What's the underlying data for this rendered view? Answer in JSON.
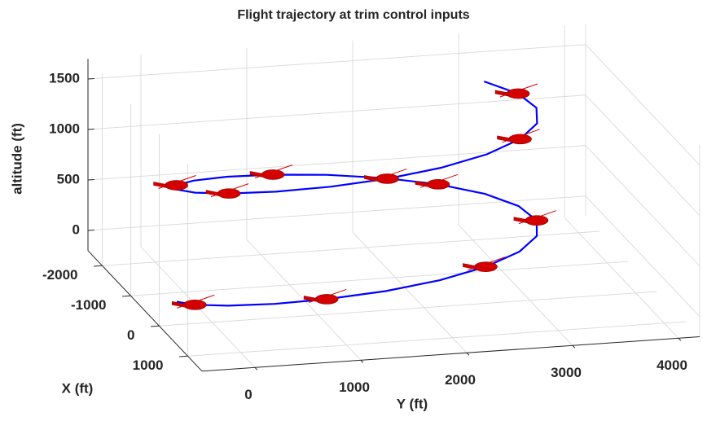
{
  "chart_data": {
    "type": "line3d",
    "title": "Flight trajectory at trim control inputs",
    "xlabel": "X (ft)",
    "ylabel": "Y (ft)",
    "zlabel": "altitude (ft)",
    "x": [
      -1098,
      -821,
      -512,
      -202,
      78,
      302,
      448,
      500,
      452,
      315,
      94,
      -181,
      -490,
      -801,
      -1081,
      -1306,
      -1449,
      -1500,
      -1451,
      -1314,
      -1092,
      -816,
      -502,
      -194,
      84,
      308,
      450,
      500,
      449,
      310,
      89,
      -186,
      -499
    ],
    "y": [
      2863,
      3110,
      3200,
      3123,
      2887,
      2515,
      2041,
      1519,
      995,
      516,
      133,
      -112,
      -200,
      -122,
      116,
      494,
      964,
      1486,
      2020,
      2488,
      2870,
      3113,
      3200,
      3118,
      2880,
      2501,
      2030,
      1503,
      961,
      504,
      126,
      -113,
      -200
    ],
    "z": [
      1650,
      1594,
      1539,
      1483,
      1428,
      1372,
      1316,
      1261,
      1205,
      1150,
      1094,
      1038,
      983,
      927,
      872,
      816,
      760,
      705,
      649,
      594,
      538,
      482,
      427,
      371,
      316,
      260,
      204,
      149,
      93,
      38,
      -18,
      -74,
      -130
    ],
    "color": "#0000ff",
    "xlim": [
      -2500,
      1500
    ],
    "ylim": [
      -500,
      4200
    ],
    "zlim": [
      -200,
      1700
    ],
    "xticks": [
      -2000,
      -1000,
      0,
      1000
    ],
    "yticks": [
      0,
      1000,
      2000,
      3000,
      4000
    ],
    "zticks": [
      0,
      500,
      1000,
      1500
    ],
    "grid": true
  }
}
